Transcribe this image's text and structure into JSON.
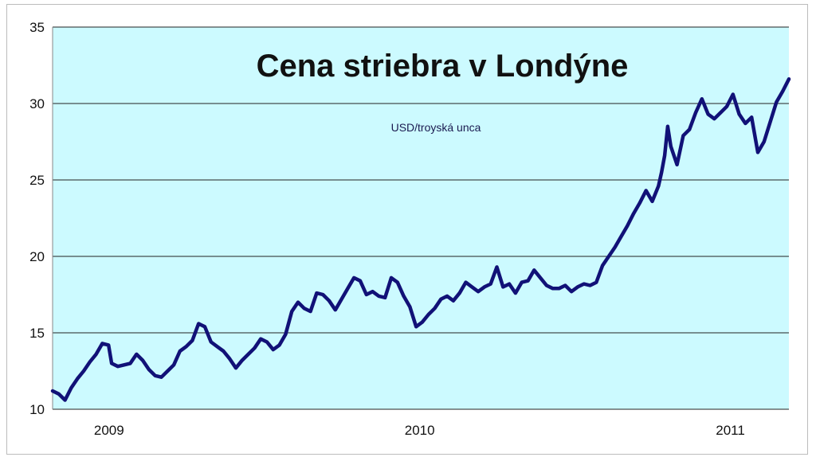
{
  "chart_data": {
    "type": "line",
    "title": "Cena striebra v Londýne",
    "subtitle": "USD/troyská unca",
    "xlabel": "",
    "ylabel": "",
    "ylim": [
      10,
      35
    ],
    "yticks": [
      "10",
      "15",
      "20",
      "25",
      "30",
      "35"
    ],
    "xticks": [
      "2009",
      "2010",
      "2011"
    ],
    "xticks_at": [
      2009.0,
      2010.0,
      2011.0
    ],
    "xlim": [
      2008.88,
      2011.25
    ],
    "grid": "horizontal",
    "colors": {
      "plot_background": "#ccfaff",
      "line": "#111177",
      "gridline": "#222222"
    },
    "series": [
      {
        "x": [
          2008.88,
          2008.9,
          2008.92,
          2008.94,
          2008.96,
          2008.98,
          2009.0,
          2009.02,
          2009.04,
          2009.06,
          2009.07,
          2009.09,
          2009.11,
          2009.13,
          2009.15,
          2009.17,
          2009.19,
          2009.21,
          2009.23,
          2009.25,
          2009.27,
          2009.29,
          2009.31,
          2009.33,
          2009.35,
          2009.37,
          2009.39,
          2009.41,
          2009.43,
          2009.45,
          2009.47,
          2009.49,
          2009.51,
          2009.53,
          2009.55,
          2009.57,
          2009.59,
          2009.61,
          2009.63,
          2009.65,
          2009.67,
          2009.69,
          2009.71,
          2009.73,
          2009.75,
          2009.77,
          2009.79,
          2009.81,
          2009.83,
          2009.85,
          2009.87,
          2009.89,
          2009.91,
          2009.93,
          2009.95,
          2009.97,
          2009.99,
          2010.01,
          2010.03,
          2010.05,
          2010.07,
          2010.09,
          2010.11,
          2010.13,
          2010.15,
          2010.17,
          2010.19,
          2010.21,
          2010.23,
          2010.25,
          2010.27,
          2010.29,
          2010.31,
          2010.33,
          2010.35,
          2010.37,
          2010.39,
          2010.41,
          2010.43,
          2010.45,
          2010.47,
          2010.49,
          2010.51,
          2010.53,
          2010.55,
          2010.57,
          2010.59,
          2010.61,
          2010.63,
          2010.65,
          2010.67,
          2010.69,
          2010.71,
          2010.73,
          2010.75,
          2010.77,
          2010.79,
          2010.81,
          2010.83,
          2010.84,
          2010.85,
          2010.86,
          2010.87,
          2010.89,
          2010.91,
          2010.93,
          2010.95,
          2010.97,
          2010.99,
          2011.01,
          2011.03,
          2011.05,
          2011.07,
          2011.09,
          2011.11,
          2011.13,
          2011.15,
          2011.17,
          2011.19,
          2011.21,
          2011.23,
          2011.25
        ],
        "values": [
          11.2,
          11.0,
          10.6,
          11.4,
          12.0,
          12.5,
          13.1,
          13.6,
          14.3,
          14.2,
          13.0,
          12.8,
          12.9,
          13.0,
          13.6,
          13.2,
          12.6,
          12.2,
          12.1,
          12.5,
          12.9,
          13.8,
          14.1,
          14.5,
          15.6,
          15.4,
          14.4,
          14.1,
          13.8,
          13.3,
          12.7,
          13.2,
          13.6,
          14.0,
          14.6,
          14.4,
          13.9,
          14.2,
          14.9,
          16.4,
          17.0,
          16.6,
          16.4,
          17.6,
          17.5,
          17.1,
          16.5,
          17.2,
          17.9,
          18.6,
          18.4,
          17.5,
          17.7,
          17.4,
          17.3,
          18.6,
          18.3,
          17.4,
          16.7,
          15.4,
          15.7,
          16.2,
          16.6,
          17.2,
          17.4,
          17.1,
          17.6,
          18.3,
          18.0,
          17.7,
          18.0,
          18.2,
          19.3,
          18.0,
          18.2,
          17.6,
          18.3,
          18.4,
          19.1,
          18.6,
          18.1,
          17.9,
          17.9,
          18.1,
          17.7,
          18.0,
          18.2,
          18.1,
          18.3,
          19.4,
          20.0,
          20.6,
          21.3,
          22.0,
          22.8,
          23.5,
          24.3,
          23.6,
          24.6,
          25.5,
          26.6,
          28.5,
          27.2,
          26.0,
          27.9,
          28.3,
          29.4,
          30.3,
          29.3,
          29.0,
          29.4,
          29.8,
          30.6,
          29.3,
          28.7,
          29.1,
          26.8,
          27.5,
          28.8,
          30.1,
          30.8,
          31.6
        ]
      }
    ]
  }
}
